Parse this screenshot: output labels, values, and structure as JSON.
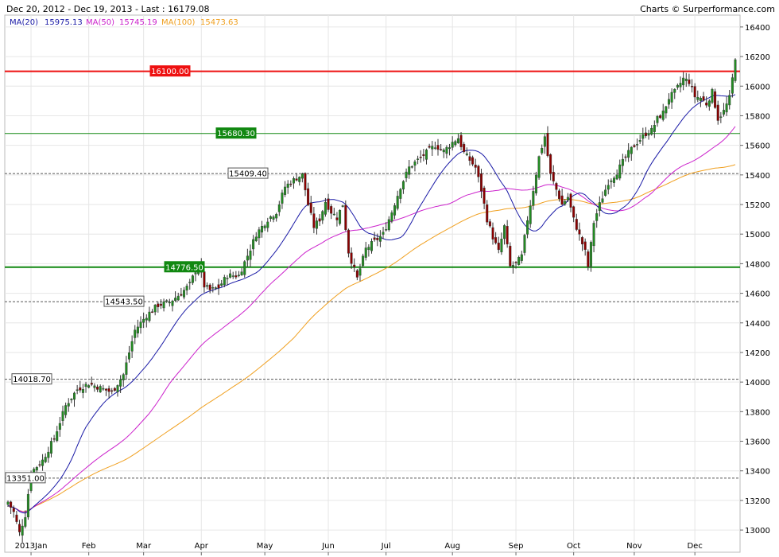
{
  "header": {
    "range": "Dec 20, 2012 - Dec 19, 2013 - Last : 16179.08",
    "credit": "Charts © Surperformance.com"
  },
  "legend": [
    {
      "label": "MA(20)",
      "value": "15975.13",
      "color": "#1a1aa6"
    },
    {
      "label": "MA(50)",
      "value": "15745.19",
      "color": "#cc22cc"
    },
    {
      "label": "MA(100)",
      "value": "15473.63",
      "color": "#f0a020"
    }
  ],
  "colors": {
    "up": "#228b22",
    "down": "#8b0000",
    "ma20": "#1a1aa6",
    "ma50": "#cc22cc",
    "ma100": "#f0a020",
    "grid": "#e6e6e6"
  },
  "chart_data": {
    "type": "candlestick",
    "title": "Dec 20, 2012 - Dec 19, 2013 - Last : 16179.08",
    "ylim": [
      12850,
      16480
    ],
    "y_ticks": [
      13000,
      13200,
      13400,
      13600,
      13800,
      14000,
      14200,
      14400,
      14600,
      14800,
      15000,
      15200,
      15400,
      15600,
      15800,
      16000,
      16200,
      16400
    ],
    "x_ticks": [
      "2013Jan",
      "Feb",
      "Mar",
      "Apr",
      "May",
      "Jun",
      "Jul",
      "Aug",
      "Sep",
      "Oct",
      "Nov",
      "Dec"
    ],
    "x_tick_index": [
      8,
      28,
      47,
      67,
      89,
      111,
      131,
      154,
      176,
      196,
      217,
      238
    ],
    "levels": [
      {
        "value": 16100.0,
        "label": "16100.00",
        "style": "resistance-red"
      },
      {
        "value": 15680.3,
        "label": "15680.30",
        "style": "green-thin"
      },
      {
        "value": 15409.4,
        "label": "15409.40",
        "style": "dashed"
      },
      {
        "value": 14776.5,
        "label": "14776.50",
        "style": "green-thick"
      },
      {
        "value": 14543.5,
        "label": "14543.50",
        "style": "dashed"
      },
      {
        "value": 14018.7,
        "label": "14018.70",
        "style": "dashed"
      },
      {
        "value": 13351.0,
        "label": "13351.00",
        "style": "dashed"
      }
    ],
    "last_close": 16179.08,
    "close_anchors": [
      [
        0,
        13190
      ],
      [
        2,
        13120
      ],
      [
        4,
        12980
      ],
      [
        6,
        13100
      ],
      [
        8,
        13390
      ],
      [
        12,
        13470
      ],
      [
        16,
        13620
      ],
      [
        20,
        13840
      ],
      [
        24,
        13950
      ],
      [
        28,
        13990
      ],
      [
        32,
        13960
      ],
      [
        36,
        13930
      ],
      [
        40,
        14050
      ],
      [
        44,
        14350
      ],
      [
        48,
        14450
      ],
      [
        52,
        14520
      ],
      [
        56,
        14540
      ],
      [
        60,
        14600
      ],
      [
        63,
        14660
      ],
      [
        66,
        14800
      ],
      [
        68,
        14650
      ],
      [
        70,
        14620
      ],
      [
        73,
        14640
      ],
      [
        76,
        14720
      ],
      [
        80,
        14720
      ],
      [
        84,
        14900
      ],
      [
        86,
        15000
      ],
      [
        90,
        15100
      ],
      [
        93,
        15150
      ],
      [
        96,
        15320
      ],
      [
        98,
        15350
      ],
      [
        100,
        15380
      ],
      [
        102,
        15400
      ],
      [
        104,
        15200
      ],
      [
        106,
        15050
      ],
      [
        108,
        15100
      ],
      [
        110,
        15220
      ],
      [
        112,
        15150
      ],
      [
        114,
        15110
      ],
      [
        116,
        15200
      ],
      [
        118,
        14880
      ],
      [
        120,
        14760
      ],
      [
        121,
        14700
      ],
      [
        124,
        14900
      ],
      [
        127,
        14950
      ],
      [
        130,
        15000
      ],
      [
        133,
        15150
      ],
      [
        136,
        15320
      ],
      [
        139,
        15450
      ],
      [
        142,
        15500
      ],
      [
        145,
        15550
      ],
      [
        148,
        15600
      ],
      [
        151,
        15560
      ],
      [
        154,
        15620
      ],
      [
        156,
        15650
      ],
      [
        158,
        15550
      ],
      [
        160,
        15500
      ],
      [
        162,
        15450
      ],
      [
        164,
        15300
      ],
      [
        166,
        15100
      ],
      [
        168,
        14980
      ],
      [
        170,
        14880
      ],
      [
        172,
        15050
      ],
      [
        174,
        14780
      ],
      [
        176,
        14800
      ],
      [
        178,
        14850
      ],
      [
        180,
        15100
      ],
      [
        182,
        15300
      ],
      [
        184,
        15520
      ],
      [
        186,
        15660
      ],
      [
        188,
        15400
      ],
      [
        190,
        15300
      ],
      [
        192,
        15200
      ],
      [
        194,
        15250
      ],
      [
        196,
        15100
      ],
      [
        198,
        14990
      ],
      [
        200,
        14880
      ],
      [
        201,
        14780
      ],
      [
        203,
        15080
      ],
      [
        205,
        15200
      ],
      [
        208,
        15350
      ],
      [
        211,
        15420
      ],
      [
        214,
        15520
      ],
      [
        217,
        15600
      ],
      [
        219,
        15640
      ],
      [
        221,
        15680
      ],
      [
        223,
        15700
      ],
      [
        225,
        15780
      ],
      [
        227,
        15820
      ],
      [
        229,
        15920
      ],
      [
        231,
        15960
      ],
      [
        234,
        16050
      ],
      [
        236,
        16030
      ],
      [
        238,
        15930
      ],
      [
        240,
        15920
      ],
      [
        242,
        15880
      ],
      [
        244,
        15960
      ],
      [
        246,
        15780
      ],
      [
        248,
        15830
      ],
      [
        250,
        15920
      ],
      [
        252,
        16179
      ]
    ]
  }
}
